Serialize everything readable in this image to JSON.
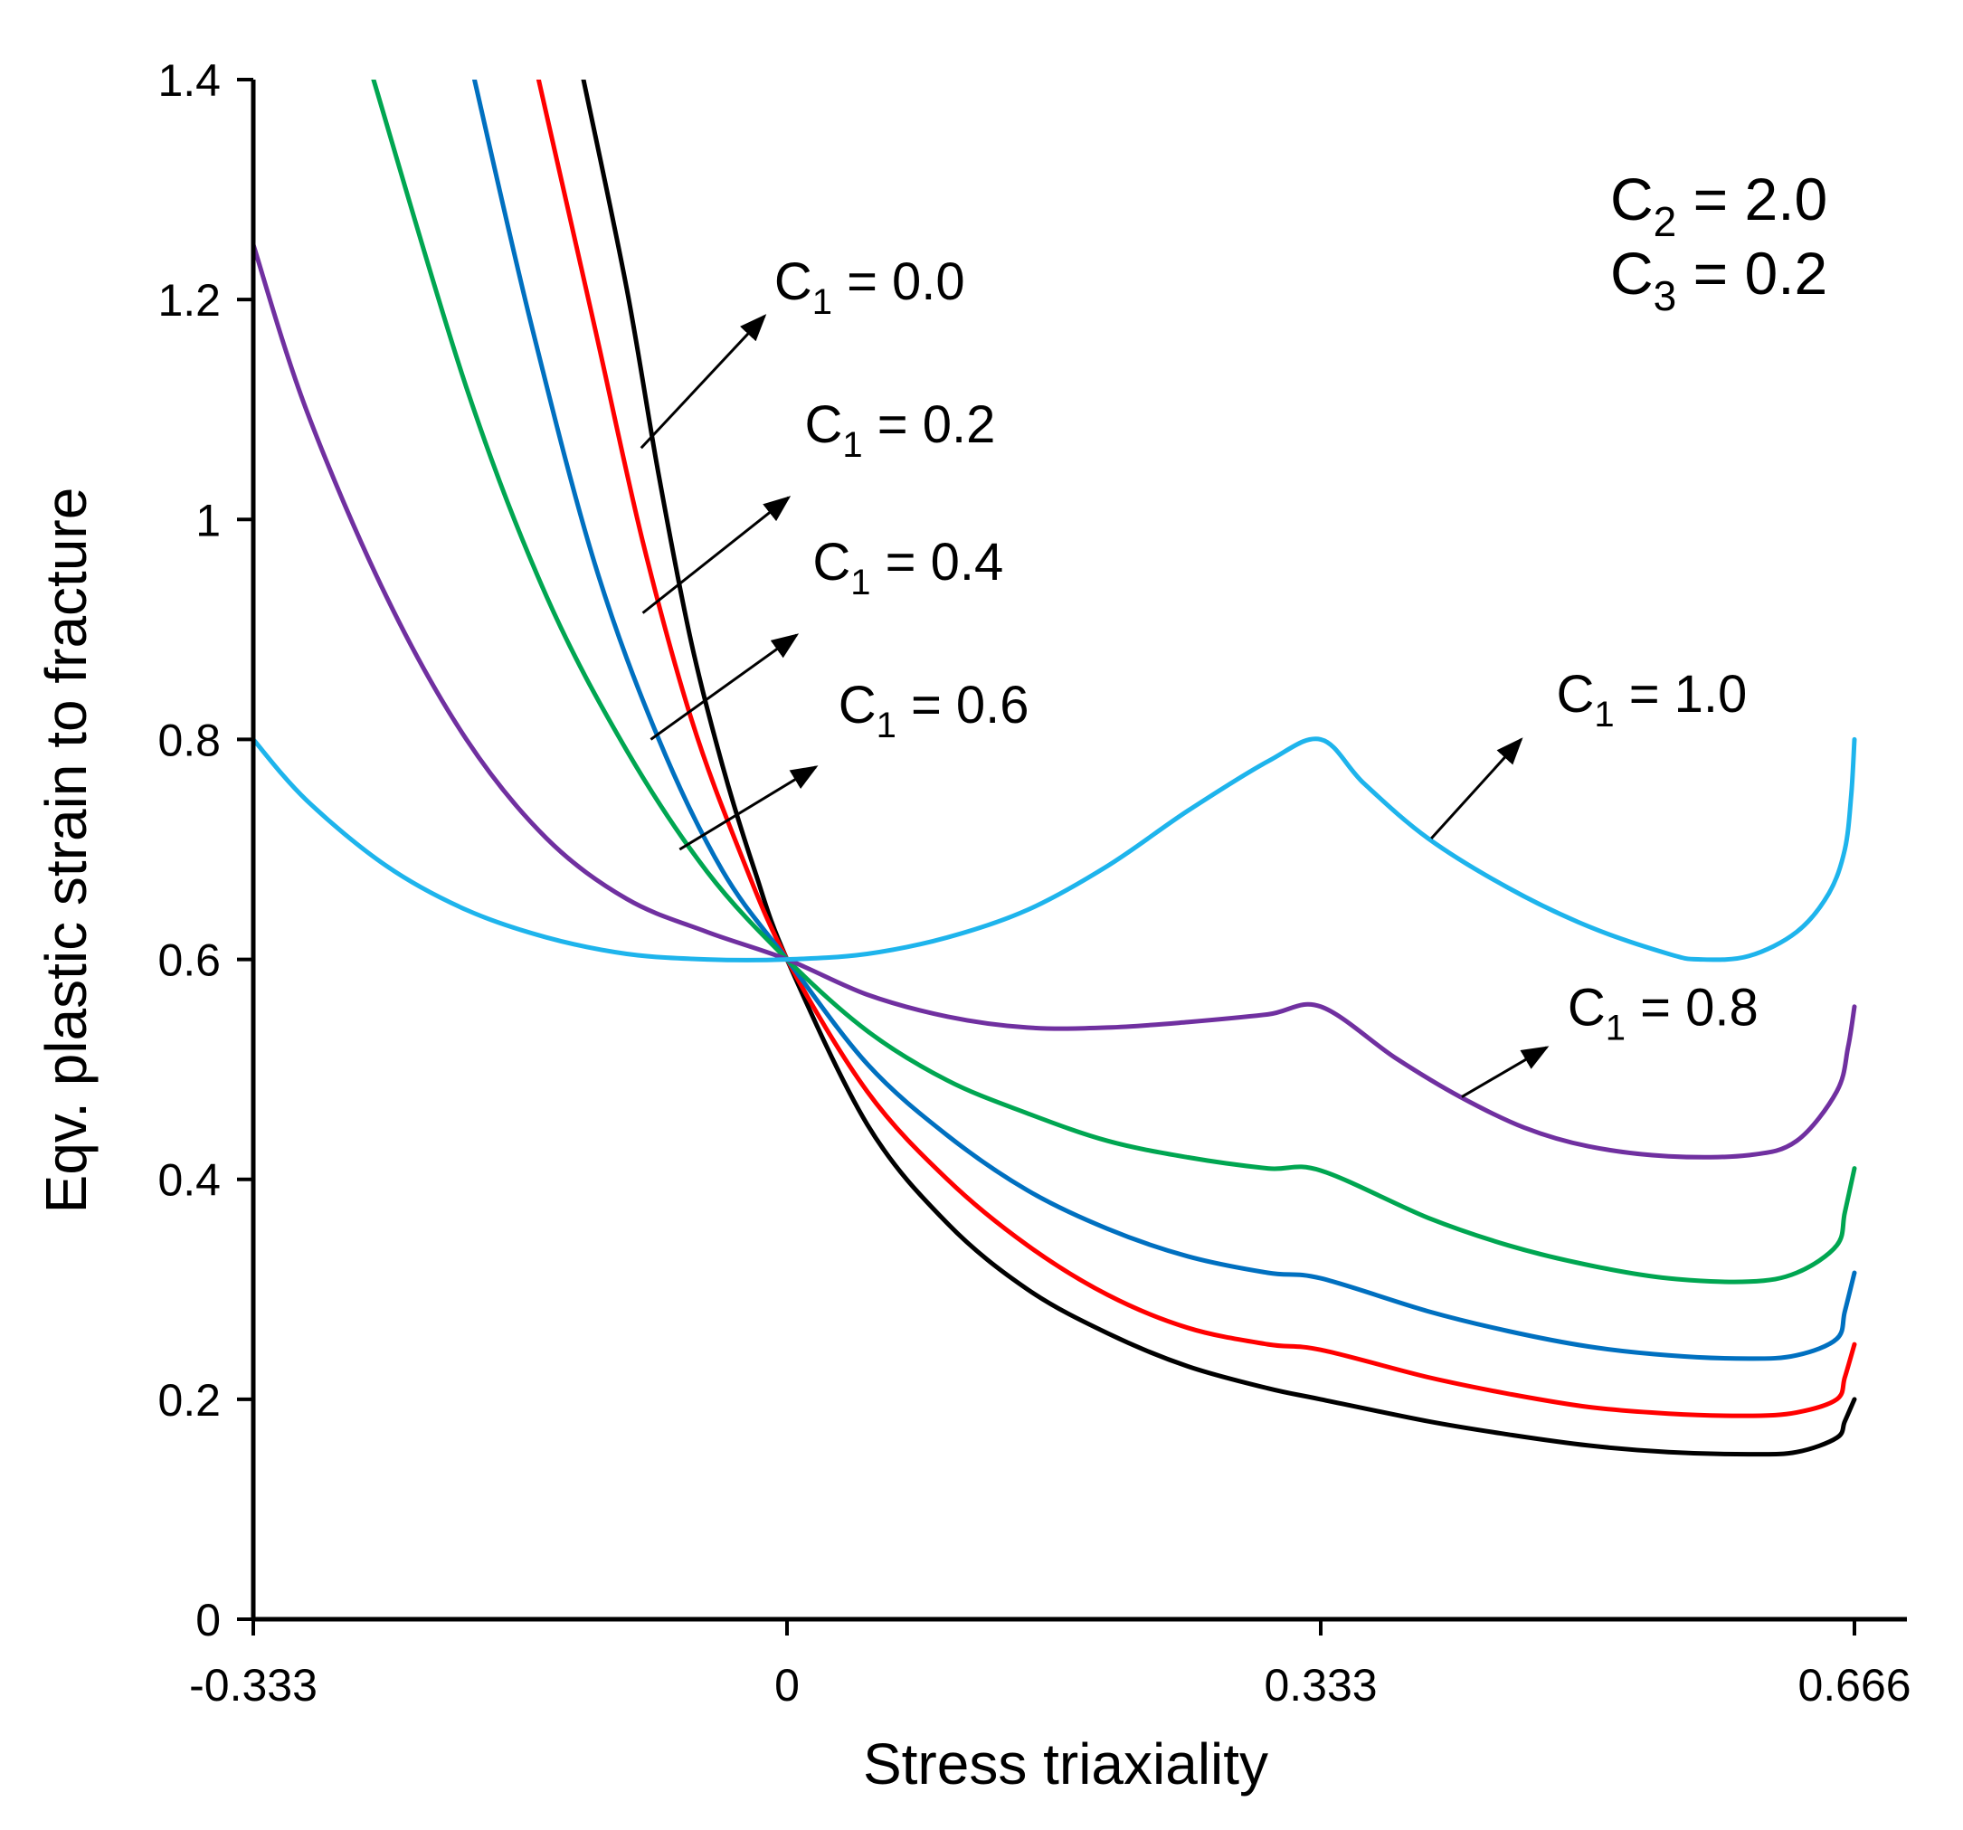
{
  "chart_data": {
    "type": "line",
    "title": "",
    "xlabel": "Stress triaxiality",
    "ylabel": "Eqv. plastic strain to fracture",
    "xlim": [
      -0.333,
      0.666
    ],
    "ylim": [
      0,
      1.4
    ],
    "x_ticks": [
      -0.333,
      0,
      0.333,
      0.666
    ],
    "x_tick_labels": [
      "-0.333",
      "0",
      "0.333",
      "0.666"
    ],
    "y_ticks": [
      0,
      0.2,
      0.4,
      0.6,
      0.8,
      1.0,
      1.2,
      1.4
    ],
    "y_tick_labels": [
      "0",
      "0.2",
      "0.4",
      "0.6",
      "0.8",
      "1",
      "1.2",
      "1.4"
    ],
    "grid": false,
    "parameters": {
      "c2": {
        "symbol": "C",
        "sub": "2",
        "text": " = 2.0"
      },
      "c3": {
        "symbol": "C",
        "sub": "3",
        "text": " = 0.2"
      }
    },
    "series": [
      {
        "name": "C1 = 0.0",
        "label_symbol": "C",
        "label_sub": "1",
        "label_text": " = 0.0",
        "color": "#000000",
        "x": [
          -0.127,
          -0.1,
          -0.08,
          -0.06,
          -0.04,
          -0.02,
          0,
          0.05,
          0.1,
          0.15,
          0.2,
          0.25,
          0.3,
          0.333,
          0.4,
          0.45,
          0.5,
          0.55,
          0.6,
          0.63,
          0.655,
          0.66,
          0.666
        ],
        "y": [
          1.4,
          1.21,
          1.04,
          0.89,
          0.775,
          0.68,
          0.6,
          0.45,
          0.36,
          0.3,
          0.26,
          0.23,
          0.21,
          0.2,
          0.18,
          0.168,
          0.158,
          0.152,
          0.15,
          0.152,
          0.165,
          0.18,
          0.2
        ]
      },
      {
        "name": "C1 = 0.2",
        "label_symbol": "C",
        "label_sub": "1",
        "label_text": " = 0.2",
        "color": "#ff0000",
        "x": [
          -0.155,
          -0.12,
          -0.09,
          -0.06,
          -0.03,
          0,
          0.05,
          0.1,
          0.15,
          0.2,
          0.25,
          0.3,
          0.333,
          0.4,
          0.45,
          0.5,
          0.55,
          0.6,
          0.63,
          0.655,
          0.66,
          0.666
        ],
        "y": [
          1.4,
          1.175,
          0.98,
          0.82,
          0.7,
          0.6,
          0.48,
          0.4,
          0.34,
          0.295,
          0.265,
          0.25,
          0.245,
          0.22,
          0.205,
          0.193,
          0.187,
          0.185,
          0.188,
          0.2,
          0.22,
          0.25
        ]
      },
      {
        "name": "C1 = 0.4",
        "label_symbol": "C",
        "label_sub": "1",
        "label_text": " = 0.4",
        "color": "#0070c0",
        "x": [
          -0.195,
          -0.16,
          -0.12,
          -0.08,
          -0.04,
          0,
          0.05,
          0.1,
          0.15,
          0.2,
          0.25,
          0.3,
          0.333,
          0.4,
          0.45,
          0.5,
          0.55,
          0.6,
          0.63,
          0.655,
          0.66,
          0.666
        ],
        "y": [
          1.4,
          1.18,
          0.96,
          0.8,
          0.68,
          0.6,
          0.505,
          0.44,
          0.39,
          0.355,
          0.33,
          0.315,
          0.31,
          0.28,
          0.262,
          0.248,
          0.24,
          0.237,
          0.24,
          0.255,
          0.28,
          0.315
        ]
      },
      {
        "name": "C1 = 0.6",
        "label_symbol": "C",
        "label_sub": "1",
        "label_text": " = 0.6",
        "color": "#00a651",
        "x": [
          -0.258,
          -0.2,
          -0.15,
          -0.1,
          -0.05,
          0,
          0.05,
          0.1,
          0.15,
          0.2,
          0.25,
          0.3,
          0.333,
          0.4,
          0.45,
          0.5,
          0.55,
          0.6,
          0.63,
          0.655,
          0.66,
          0.666
        ],
        "y": [
          1.4,
          1.12,
          0.93,
          0.79,
          0.68,
          0.6,
          0.535,
          0.49,
          0.46,
          0.435,
          0.42,
          0.41,
          0.408,
          0.365,
          0.34,
          0.322,
          0.31,
          0.307,
          0.315,
          0.34,
          0.37,
          0.41
        ]
      },
      {
        "name": "C1 = 0.8",
        "label_symbol": "C",
        "label_sub": "1",
        "label_text": " = 0.8",
        "color": "#7030a0",
        "x": [
          -0.333,
          -0.3,
          -0.25,
          -0.2,
          -0.15,
          -0.1,
          -0.05,
          0,
          0.05,
          0.1,
          0.15,
          0.2,
          0.25,
          0.3,
          0.333,
          0.38,
          0.42,
          0.46,
          0.5,
          0.55,
          0.6,
          0.63,
          0.655,
          0.662,
          0.666
        ],
        "y": [
          1.25,
          1.1,
          0.93,
          0.8,
          0.71,
          0.655,
          0.625,
          0.6,
          0.568,
          0.548,
          0.538,
          0.538,
          0.543,
          0.55,
          0.557,
          0.51,
          0.475,
          0.447,
          0.43,
          0.421,
          0.422,
          0.435,
          0.48,
          0.52,
          0.557
        ]
      },
      {
        "name": "C1 = 1.0",
        "label_symbol": "C",
        "label_sub": "1",
        "label_text": " = 1.0",
        "color": "#1eb4ec",
        "x": [
          -0.333,
          -0.3,
          -0.25,
          -0.2,
          -0.15,
          -0.1,
          -0.05,
          0,
          0.05,
          0.1,
          0.15,
          0.2,
          0.25,
          0.3,
          0.333,
          0.36,
          0.4,
          0.45,
          0.5,
          0.55,
          0.57,
          0.6,
          0.63,
          0.65,
          0.66,
          0.664,
          0.666
        ],
        "y": [
          0.8,
          0.745,
          0.685,
          0.645,
          0.62,
          0.605,
          0.6,
          0.6,
          0.605,
          0.62,
          0.645,
          0.685,
          0.735,
          0.78,
          0.8,
          0.76,
          0.71,
          0.665,
          0.63,
          0.605,
          0.6,
          0.603,
          0.625,
          0.66,
          0.7,
          0.75,
          0.8
        ]
      }
    ],
    "annotations": [
      {
        "series": "C1 = 0.0",
        "symbol": "C",
        "sub": "1",
        "text": " = 0.0",
        "arrow_from": [
          -0.091,
          1.065
        ],
        "arrow_to": [
          -0.014,
          1.185
        ],
        "label_at": [
          -0.008,
          1.2
        ]
      },
      {
        "series": "C1 = 0.2",
        "symbol": "C",
        "sub": "1",
        "text": " = 0.2",
        "arrow_from": [
          -0.09,
          0.915
        ],
        "arrow_to": [
          0.001,
          1.02
        ],
        "label_at": [
          0.011,
          1.07
        ]
      },
      {
        "series": "C1 = 0.4",
        "symbol": "C",
        "sub": "1",
        "text": " = 0.4",
        "arrow_from": [
          -0.085,
          0.8
        ],
        "arrow_to": [
          0.006,
          0.895
        ],
        "label_at": [
          0.016,
          0.945
        ]
      },
      {
        "series": "C1 = 0.6",
        "symbol": "C",
        "sub": "1",
        "text": " = 0.6",
        "arrow_from": [
          -0.067,
          0.7
        ],
        "arrow_to": [
          0.018,
          0.775
        ],
        "label_at": [
          0.032,
          0.815
        ]
      },
      {
        "series": "C1 = 0.8",
        "symbol": "C",
        "sub": "1",
        "text": " = 0.8",
        "arrow_from": [
          0.421,
          0.475
        ],
        "arrow_to": [
          0.474,
          0.52
        ],
        "label_at": [
          0.487,
          0.54
        ]
      },
      {
        "series": "C1 = 1.0",
        "symbol": "C",
        "sub": "1",
        "text": " = 1.0",
        "arrow_from": [
          0.402,
          0.71
        ],
        "arrow_to": [
          0.458,
          0.8
        ],
        "label_at": [
          0.48,
          0.825
        ]
      }
    ]
  }
}
